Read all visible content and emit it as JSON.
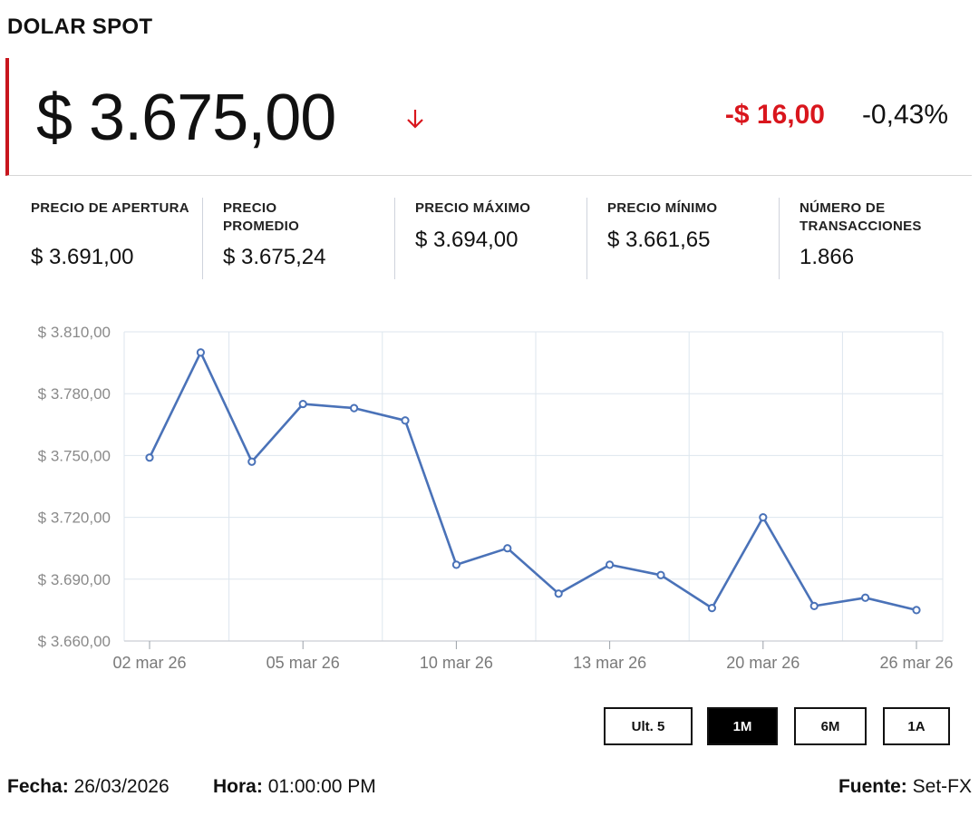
{
  "title": "DOLAR SPOT",
  "price": {
    "value": "$ 3.675,00",
    "direction_icon": "arrow-down-icon",
    "change_abs": "-$ 16,00",
    "change_pct": "-0,43%",
    "down_color": "#d9161d"
  },
  "stats": [
    {
      "label": "PRECIO DE APERTURA",
      "value": "$ 3.691,00"
    },
    {
      "label": "PRECIO PROMEDIO",
      "value": "$ 3.675,24"
    },
    {
      "label": "PRECIO MÁXIMO",
      "value": "$ 3.694,00"
    },
    {
      "label": "PRECIO MÍNIMO",
      "value": "$ 3.661,65"
    },
    {
      "label": "NÚMERO DE TRANSACCIONES",
      "value": "1.866"
    }
  ],
  "chart_data": {
    "type": "line",
    "x_tick_labels": [
      "02 mar 26",
      "05 mar 26",
      "10 mar 26",
      "13 mar 26",
      "20 mar 26",
      "26 mar 26"
    ],
    "y_tick_labels": [
      "$ 3.810,00",
      "$ 3.780,00",
      "$ 3.750,00",
      "$ 3.720,00",
      "$ 3.690,00",
      "$ 3.660,00"
    ],
    "ylim": [
      3660,
      3810
    ],
    "grid": true,
    "line_color": "#4a72b8",
    "x": [
      "02 mar 26",
      "03 mar 26",
      "04 mar 26",
      "05 mar 26",
      "06 mar 26",
      "09 mar 26",
      "10 mar 26",
      "11 mar 26",
      "12 mar 26",
      "13 mar 26",
      "16 mar 26",
      "17 mar 26",
      "20 mar 26",
      "24 mar 26",
      "25 mar 26",
      "26 mar 26"
    ],
    "values": [
      3749,
      3800,
      3747,
      3775,
      3773,
      3767,
      3697,
      3705,
      3683,
      3697,
      3692,
      3676,
      3720,
      3677,
      3681,
      3675
    ]
  },
  "range_buttons": [
    {
      "label": "Ult. 5",
      "active": false
    },
    {
      "label": "1M",
      "active": true
    },
    {
      "label": "6M",
      "active": false
    },
    {
      "label": "1A",
      "active": false
    }
  ],
  "footer": {
    "fecha_label": "Fecha:",
    "fecha_value": "26/03/2026",
    "hora_label": "Hora:",
    "hora_value": "01:00:00 PM",
    "fuente_label": "Fuente:",
    "fuente_value": "Set-FX"
  }
}
